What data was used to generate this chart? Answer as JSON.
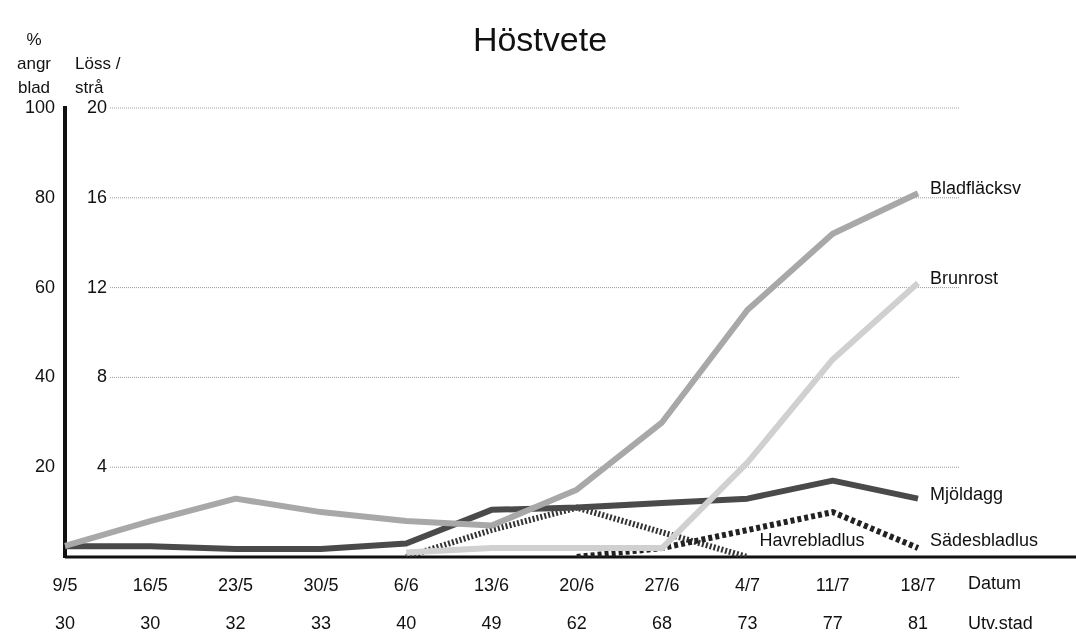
{
  "chart_data": {
    "type": "line",
    "title": "Höstvete",
    "xlabel": "Datum",
    "ylabel": "% angr blad",
    "y2label": "Löss / strå",
    "categories": [
      "9/5",
      "16/5",
      "23/5",
      "30/5",
      "6/6",
      "13/6",
      "20/6",
      "27/6",
      "4/7",
      "11/7",
      "18/7"
    ],
    "series": [
      {
        "name": "Bladfläcksv",
        "color": "#a8a8a8",
        "values": [
          2.5,
          8,
          13,
          10,
          8,
          7,
          15,
          30,
          55,
          72,
          81
        ]
      },
      {
        "name": "Brunrost",
        "color": "#d0d0d0",
        "values": [
          null,
          null,
          null,
          null,
          1,
          2,
          2,
          2,
          21,
          44,
          61
        ]
      },
      {
        "name": "Mjöldagg",
        "color": "#4a4a4a",
        "values": [
          2.4,
          2.4,
          1.8,
          1.8,
          3,
          10.5,
          11,
          12,
          13,
          17,
          13
        ]
      },
      {
        "name": "Sädesbladlus",
        "color": "#222222",
        "axis": "y2",
        "line_style": "dashed",
        "values": [
          null,
          null,
          null,
          null,
          null,
          null,
          0,
          0.4,
          1.2,
          2,
          0.4
        ]
      },
      {
        "name": "Havrebladlus",
        "color": "#333333",
        "axis": "y2",
        "line_style": "dotted",
        "values": [
          null,
          null,
          null,
          null,
          0,
          1.2,
          2.2,
          1.1,
          0,
          null,
          null
        ]
      }
    ],
    "ylim": [
      0,
      100
    ],
    "yticks": [
      20,
      40,
      60,
      80,
      100
    ],
    "y2lim": [
      0,
      20
    ],
    "y2ticks": [
      4,
      8,
      12,
      16,
      20
    ],
    "grid": "y",
    "legend": false,
    "marker": "none",
    "annotations": [
      "30",
      "30",
      "32",
      "33",
      "40",
      "49",
      "62",
      "68",
      "73",
      "77",
      "81",
      "Utv.stad"
    ]
  }
}
